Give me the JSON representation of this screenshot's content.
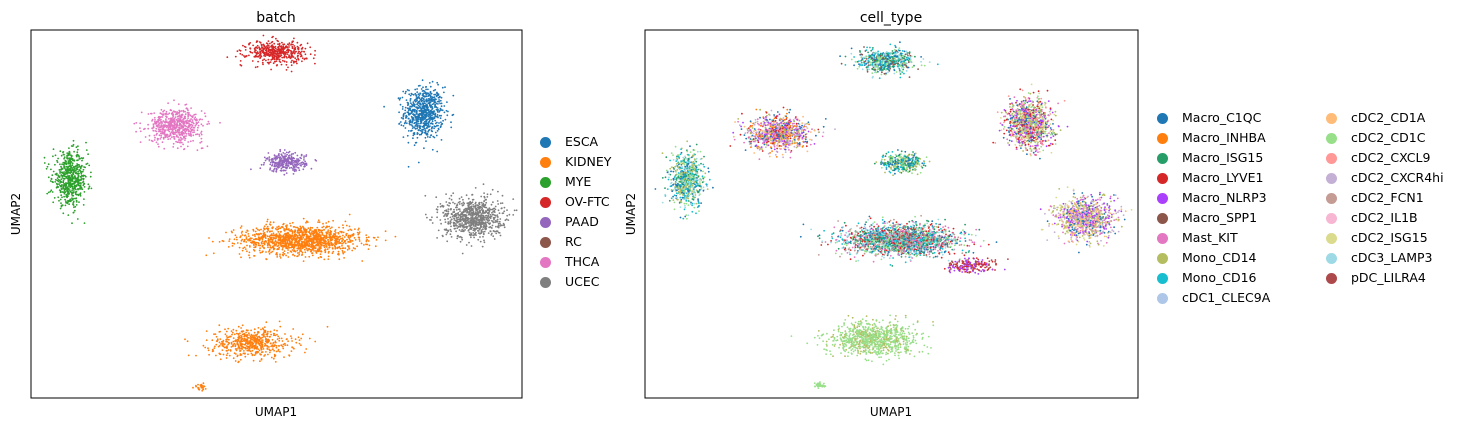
{
  "chart_data": [
    {
      "type": "scatter",
      "title": "batch",
      "xlabel": "UMAP1",
      "ylabel": "UMAP2",
      "xlim": [
        0,
        10
      ],
      "ylim": [
        0,
        10
      ],
      "grid": false,
      "legend_placement": "right",
      "series": [
        {
          "name": "ESCA",
          "color": "#1f77b4",
          "clusters": [
            {
              "x": 8.0,
              "y": 7.75,
              "sx": 0.4,
              "sy": 0.7,
              "n": 700
            }
          ]
        },
        {
          "name": "KIDNEY",
          "color": "#ff7f0e",
          "clusters": [
            {
              "x": 5.5,
              "y": 4.3,
              "sx": 1.2,
              "sy": 0.4,
              "n": 1300
            },
            {
              "x": 4.5,
              "y": 1.5,
              "sx": 0.85,
              "sy": 0.4,
              "n": 550
            },
            {
              "x": 3.45,
              "y": 0.3,
              "sx": 0.12,
              "sy": 0.1,
              "n": 30
            }
          ]
        },
        {
          "name": "MYE",
          "color": "#2ca02c",
          "clusters": [
            {
              "x": 0.8,
              "y": 5.95,
              "sx": 0.35,
              "sy": 0.7,
              "n": 600
            }
          ]
        },
        {
          "name": "OV-FTC",
          "color": "#d62728",
          "clusters": [
            {
              "x": 5.0,
              "y": 9.4,
              "sx": 0.6,
              "sy": 0.3,
              "n": 450
            }
          ]
        },
        {
          "name": "PAAD",
          "color": "#9467bd",
          "clusters": [
            {
              "x": 5.2,
              "y": 6.4,
              "sx": 0.4,
              "sy": 0.25,
              "n": 300
            }
          ]
        },
        {
          "name": "RC",
          "color": "#8c564b",
          "clusters": []
        },
        {
          "name": "THCA",
          "color": "#e377c2",
          "clusters": [
            {
              "x": 2.95,
              "y": 7.4,
              "sx": 0.55,
              "sy": 0.45,
              "n": 600
            }
          ]
        },
        {
          "name": "UCEC",
          "color": "#7f7f7f",
          "clusters": [
            {
              "x": 9.0,
              "y": 4.9,
              "sx": 0.6,
              "sy": 0.55,
              "n": 800
            }
          ]
        }
      ]
    },
    {
      "type": "scatter",
      "title": "cell_type",
      "xlabel": "UMAP1",
      "ylabel": "UMAP2",
      "xlim": [
        0,
        10
      ],
      "ylim": [
        0,
        10
      ],
      "grid": false,
      "legend_placement": "right",
      "clusters": [
        {
          "x": 4.9,
          "y": 9.15,
          "sx": 0.55,
          "sy": 0.3,
          "n": 700,
          "mix": [
            "Macro_C1QC",
            "Mono_CD16",
            "Macro_SPP1",
            "cDC3_LAMP3",
            "Macro_ISG15",
            "cDC2_CD1C"
          ]
        },
        {
          "x": 7.8,
          "y": 7.45,
          "sx": 0.45,
          "sy": 0.65,
          "n": 1100,
          "mix": [
            "Macro_LYVE1",
            "Mast_KIT",
            "Macro_C1QC",
            "Macro_NLRP3",
            "cDC2_ISG15",
            "cDC2_CD1C",
            "Mono_CD14",
            "cDC2_CXCL9"
          ]
        },
        {
          "x": 2.7,
          "y": 7.2,
          "sx": 0.6,
          "sy": 0.45,
          "n": 900,
          "mix": [
            "Mono_CD14",
            "Macro_INHBA",
            "Mast_KIT",
            "Macro_C1QC",
            "cDC2_CXCR4hi",
            "Macro_NLRP3",
            "Macro_LYVE1",
            "cDC2_CD1A"
          ]
        },
        {
          "x": 5.2,
          "y": 6.4,
          "sx": 0.4,
          "sy": 0.25,
          "n": 350,
          "mix": [
            "Macro_C1QC",
            "Mono_CD16",
            "Macro_ISG15",
            "cDC2_CD1C",
            "Mono_CD14"
          ]
        },
        {
          "x": 0.85,
          "y": 5.95,
          "sx": 0.35,
          "sy": 0.7,
          "n": 700,
          "mix": [
            "Mono_CD16",
            "Macro_C1QC",
            "cDC2_CD1C",
            "Mono_CD14",
            "Macro_ISG15",
            "cDC3_LAMP3"
          ]
        },
        {
          "x": 8.9,
          "y": 4.9,
          "sx": 0.6,
          "sy": 0.55,
          "n": 1000,
          "mix": [
            "Mast_KIT",
            "Macro_NLRP3",
            "Macro_C1QC",
            "cDC2_ISG15",
            "Mono_CD14",
            "cDC2_CXCR4hi",
            "cDC2_CD1A"
          ]
        },
        {
          "x": 5.2,
          "y": 4.3,
          "sx": 1.15,
          "sy": 0.4,
          "n": 2200,
          "mix": [
            "Mono_CD16",
            "Macro_ISG15",
            "cDC3_LAMP3",
            "Mast_KIT",
            "Macro_C1QC",
            "cDC2_CD1C",
            "Macro_LYVE1",
            "cDC2_FCN1"
          ]
        },
        {
          "x": 6.6,
          "y": 3.6,
          "sx": 0.5,
          "sy": 0.2,
          "n": 200,
          "mix": [
            "Macro_LYVE1",
            "pDC_LILRA4",
            "Macro_NLRP3"
          ]
        },
        {
          "x": 4.6,
          "y": 1.6,
          "sx": 0.9,
          "sy": 0.45,
          "n": 900,
          "mix": [
            "cDC2_CD1C",
            "cDC2_CD1C",
            "cDC2_CD1C",
            "Mono_CD14"
          ]
        },
        {
          "x": 3.55,
          "y": 0.35,
          "sx": 0.1,
          "sy": 0.08,
          "n": 40,
          "mix": [
            "cDC2_CD1C"
          ]
        }
      ],
      "series": [
        {
          "name": "Macro_C1QC",
          "color": "#1f77b4"
        },
        {
          "name": "Macro_INHBA",
          "color": "#ff7f0e"
        },
        {
          "name": "Macro_ISG15",
          "color": "#279e68"
        },
        {
          "name": "Macro_LYVE1",
          "color": "#d62728"
        },
        {
          "name": "Macro_NLRP3",
          "color": "#aa40fc"
        },
        {
          "name": "Macro_SPP1",
          "color": "#8c564b"
        },
        {
          "name": "Mast_KIT",
          "color": "#e377c2"
        },
        {
          "name": "Mono_CD14",
          "color": "#b5bd61"
        },
        {
          "name": "Mono_CD16",
          "color": "#17becf"
        },
        {
          "name": "cDC1_CLEC9A",
          "color": "#aec7e8"
        },
        {
          "name": "cDC2_CD1A",
          "color": "#ffbb78"
        },
        {
          "name": "cDC2_CD1C",
          "color": "#98df8a"
        },
        {
          "name": "cDC2_CXCL9",
          "color": "#ff9896"
        },
        {
          "name": "cDC2_CXCR4hi",
          "color": "#c5b0d5"
        },
        {
          "name": "cDC2_FCN1",
          "color": "#c49c94"
        },
        {
          "name": "cDC2_IL1B",
          "color": "#f7b6d2"
        },
        {
          "name": "cDC2_ISG15",
          "color": "#dbdb8d"
        },
        {
          "name": "cDC3_LAMP3",
          "color": "#9edae5"
        },
        {
          "name": "pDC_LILRA4",
          "color": "#ad494a"
        }
      ]
    }
  ]
}
